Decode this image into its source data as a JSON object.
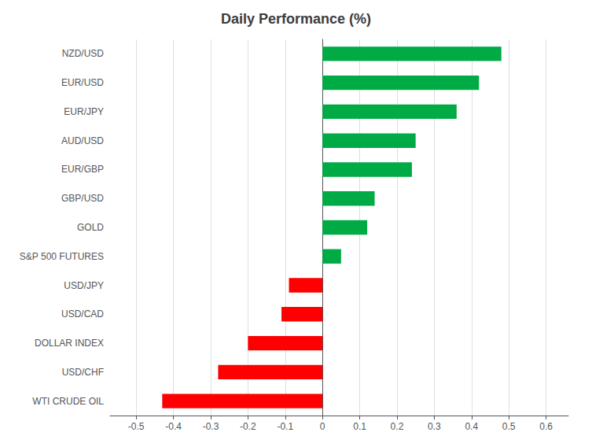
{
  "chart_data": {
    "type": "bar",
    "title": "Daily Performance (%)",
    "orientation": "horizontal",
    "categories": [
      "NZD/USD",
      "EUR/USD",
      "EUR/JPY",
      "AUD/USD",
      "EUR/GBP",
      "GBP/USD",
      "GOLD",
      "S&P 500 FUTURES",
      "USD/JPY",
      "USD/CAD",
      "DOLLAR INDEX",
      "USD/CHF",
      "WTI CRUDE OIL"
    ],
    "values": [
      0.48,
      0.42,
      0.36,
      0.25,
      0.24,
      0.14,
      0.12,
      0.05,
      -0.09,
      -0.11,
      -0.2,
      -0.28,
      -0.43
    ],
    "colors": [
      "#00AA44",
      "#00AA44",
      "#00AA44",
      "#00AA44",
      "#00AA44",
      "#00AA44",
      "#00AA44",
      "#00AA44",
      "#FF0000",
      "#FF0000",
      "#FF0000",
      "#FF0000",
      "#FF0000"
    ],
    "xlim": [
      -0.57,
      0.66
    ],
    "xticks": [
      -0.5,
      -0.4,
      -0.3,
      -0.2,
      -0.1,
      0,
      0.1,
      0.2,
      0.3,
      0.4,
      0.5,
      0.6
    ],
    "grid": true
  }
}
